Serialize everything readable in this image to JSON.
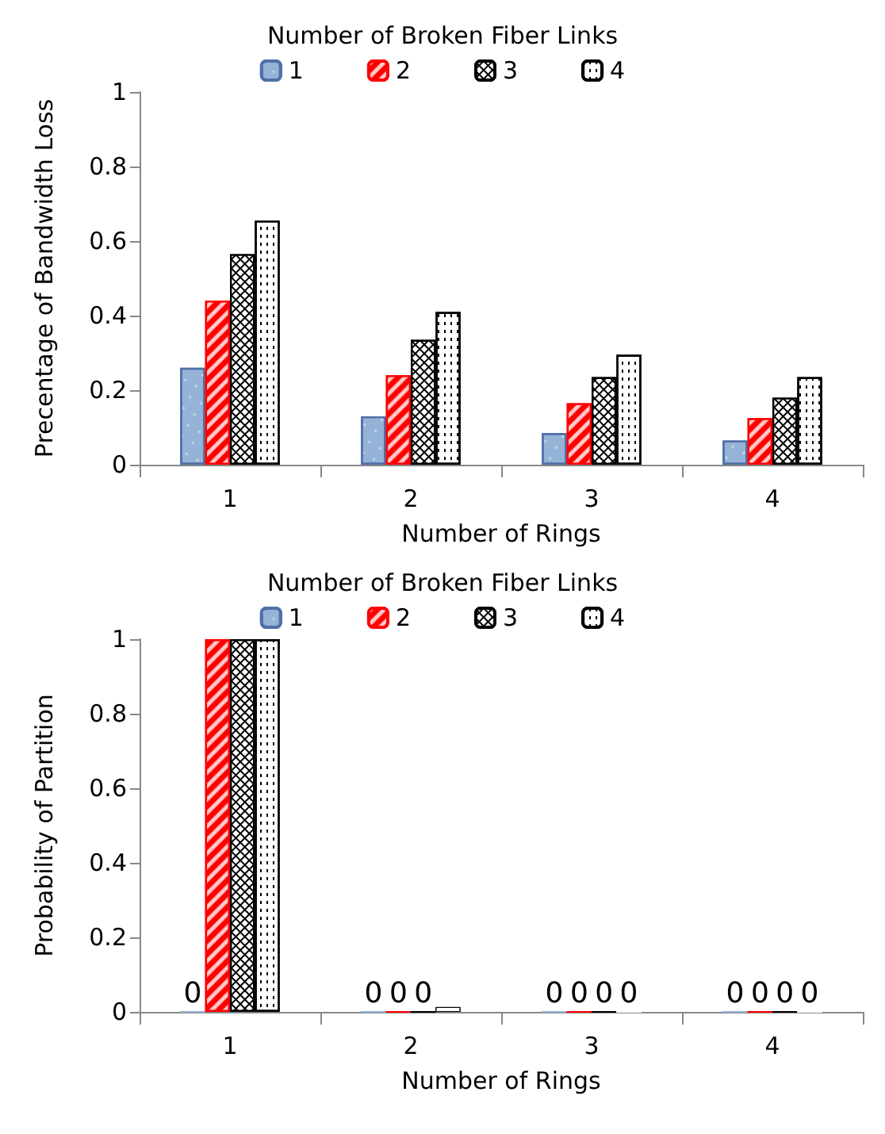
{
  "chart_data": [
    {
      "type": "bar",
      "legend_title": "Number of Broken Fiber Links",
      "xlabel": "Number of Rings",
      "ylabel": "Precentage of Bandwidth Loss",
      "categories": [
        "1",
        "2",
        "3",
        "4"
      ],
      "series": [
        {
          "name": "1",
          "color": "#95b3d7",
          "values": [
            0.26,
            0.13,
            0.085,
            0.065
          ]
        },
        {
          "name": "2",
          "color": "#ff0000",
          "values": [
            0.44,
            0.24,
            0.165,
            0.125
          ]
        },
        {
          "name": "3",
          "color": "#000000",
          "values": [
            0.565,
            0.335,
            0.235,
            0.18
          ]
        },
        {
          "name": "4",
          "color": "#ffffff",
          "values": [
            0.655,
            0.41,
            0.295,
            0.235
          ]
        }
      ],
      "ylim": [
        0,
        1
      ],
      "yticks": [
        0,
        0.2,
        0.4,
        0.6,
        0.8,
        1
      ],
      "grid": false,
      "legend": "top"
    },
    {
      "type": "bar",
      "legend_title": "Number of Broken Fiber Links",
      "xlabel": "Number of Rings",
      "ylabel": "Probability of Partition",
      "categories": [
        "1",
        "2",
        "3",
        "4"
      ],
      "series": [
        {
          "name": "1",
          "color": "#95b3d7",
          "values": [
            0,
            0,
            0,
            0
          ],
          "value_labels": [
            "0",
            "0",
            "0",
            "0"
          ]
        },
        {
          "name": "2",
          "color": "#ff0000",
          "values": [
            1,
            0,
            0,
            0
          ],
          "value_labels": [
            null,
            "0",
            "0",
            "0"
          ]
        },
        {
          "name": "3",
          "color": "#000000",
          "values": [
            1,
            0,
            0,
            0
          ],
          "value_labels": [
            null,
            "0",
            "0",
            "0"
          ]
        },
        {
          "name": "4",
          "color": "#ffffff",
          "values": [
            1,
            0.013,
            0,
            0
          ],
          "value_labels": [
            null,
            null,
            "0",
            "0"
          ]
        }
      ],
      "ylim": [
        0,
        1
      ],
      "yticks": [
        0,
        0.2,
        0.4,
        0.6,
        0.8,
        1
      ],
      "grid": false,
      "legend": "top"
    }
  ]
}
